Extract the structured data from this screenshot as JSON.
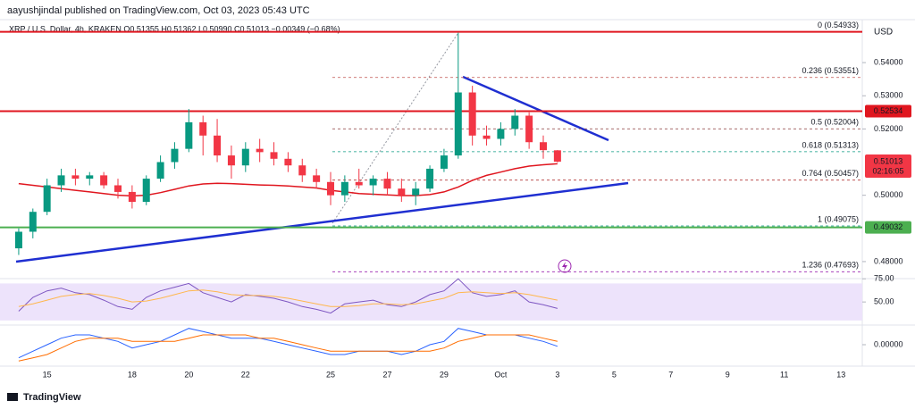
{
  "chart_data": {
    "type": "candlestick",
    "title": "aayushjindal published on TradingView.com, Oct 03, 2023 05:43 UTC",
    "subtitle": "XRP / U.S. Dollar, 4h, KRAKEN  O0.51355 H0.51362 L0.50990 C0.51013 −0.00349 (−0.68%)",
    "y_unit": "USD",
    "source": "TradingView",
    "up_color": "#089981",
    "down_color": "#f23645",
    "categories": [
      null,
      null,
      "15",
      null,
      null,
      null,
      null,
      null,
      "18",
      null,
      null,
      null,
      "20",
      null,
      null,
      null,
      "22",
      null,
      null,
      null,
      null,
      null,
      "25",
      null,
      null,
      null,
      "27",
      null,
      null,
      null,
      "29",
      null,
      null,
      null,
      "Oct",
      null,
      null,
      null,
      "3",
      null,
      null,
      null,
      "5",
      null,
      null,
      null,
      "7",
      null,
      null,
      null,
      "9",
      null,
      null,
      null,
      "11",
      null,
      null,
      null,
      "13",
      null
    ],
    "open": [
      0.484,
      0.489,
      0.495,
      0.503,
      0.506,
      0.505,
      0.506,
      0.503,
      0.501,
      0.498,
      0.505,
      0.51,
      0.514,
      0.522,
      0.518,
      0.512,
      0.509,
      0.514,
      0.513,
      0.511,
      0.509,
      0.506,
      0.504,
      0.5,
      0.504,
      0.503,
      0.505,
      0.502,
      0.5,
      0.502,
      0.508,
      0.512,
      0.531,
      0.518,
      0.517,
      0.52,
      0.524,
      0.516,
      0.51355,
      null,
      null,
      null,
      null,
      null,
      null,
      null,
      null,
      null,
      null,
      null,
      null,
      null,
      null,
      null,
      null,
      null,
      null,
      null,
      null,
      null
    ],
    "high": [
      0.49,
      0.496,
      0.505,
      0.508,
      0.508,
      0.507,
      0.507,
      0.505,
      0.503,
      0.506,
      0.512,
      0.516,
      0.526,
      0.524,
      0.523,
      0.515,
      0.516,
      0.517,
      0.516,
      0.513,
      0.511,
      0.508,
      0.507,
      0.506,
      0.508,
      0.506,
      0.507,
      0.505,
      0.504,
      0.509,
      0.514,
      0.549,
      0.533,
      0.521,
      0.522,
      0.526,
      0.525,
      0.518,
      0.51362,
      null,
      null,
      null,
      null,
      null,
      null,
      null,
      null,
      null,
      null,
      null,
      null,
      null,
      null,
      null,
      null,
      null,
      null,
      null,
      null,
      null
    ],
    "low": [
      0.482,
      0.487,
      0.494,
      0.501,
      0.503,
      0.503,
      0.502,
      0.499,
      0.496,
      0.497,
      0.504,
      0.508,
      0.513,
      0.512,
      0.51,
      0.505,
      0.507,
      0.51,
      0.509,
      0.507,
      0.504,
      0.502,
      0.497,
      0.498,
      0.502,
      0.5,
      0.5,
      0.498,
      0.497,
      0.501,
      0.507,
      0.511,
      0.515,
      0.515,
      0.515,
      0.518,
      0.514,
      0.511,
      0.5099,
      null,
      null,
      null,
      null,
      null,
      null,
      null,
      null,
      null,
      null,
      null,
      null,
      null,
      null,
      null,
      null,
      null,
      null,
      null,
      null,
      null
    ],
    "close": [
      0.489,
      0.495,
      0.503,
      0.506,
      0.505,
      0.506,
      0.503,
      0.501,
      0.498,
      0.505,
      0.51,
      0.514,
      0.522,
      0.518,
      0.512,
      0.509,
      0.514,
      0.513,
      0.511,
      0.509,
      0.506,
      0.504,
      0.5,
      0.504,
      0.503,
      0.505,
      0.502,
      0.5,
      0.502,
      0.508,
      0.512,
      0.531,
      0.518,
      0.517,
      0.52,
      0.524,
      0.516,
      0.5136,
      0.51013,
      null,
      null,
      null,
      null,
      null,
      null,
      null,
      null,
      null,
      null,
      null,
      null,
      null,
      null,
      null,
      null,
      null,
      null,
      null,
      null,
      null
    ],
    "ma": {
      "color": "#e0161f",
      "values": [
        0.5035,
        0.503,
        0.5025,
        0.502,
        0.5015,
        0.501,
        0.5005,
        0.5,
        0.4998,
        0.5,
        0.5008,
        0.5018,
        0.5028,
        0.5034,
        0.5036,
        0.5035,
        0.5033,
        0.5031,
        0.503,
        0.5028,
        0.5025,
        0.5022,
        0.5015,
        0.501,
        0.5005,
        0.5003,
        0.5001,
        0.4999,
        0.4999,
        0.5002,
        0.501,
        0.5025,
        0.5045,
        0.506,
        0.507,
        0.508,
        0.5088,
        0.5092,
        0.5095,
        null,
        null,
        null,
        null,
        null,
        null,
        null,
        null,
        null,
        null,
        null,
        null,
        null,
        null,
        null,
        null,
        null,
        null,
        null,
        null,
        null
      ]
    },
    "ylim": [
      0.4754,
      0.5508
    ],
    "yticks": [
      {
        "value": 0.54,
        "label": "0.54000"
      },
      {
        "value": 0.53,
        "label": "0.53000"
      },
      {
        "value": 0.52,
        "label": "0.52000"
      },
      {
        "value": 0.5,
        "label": "0.50000"
      },
      {
        "value": 0.48,
        "label": "0.48000"
      }
    ],
    "levels": [
      {
        "value": 0.5493,
        "color": "#e0161f"
      },
      {
        "value": 0.52534,
        "label": "0.52534",
        "color": "#e0161f"
      },
      {
        "value": 0.49032,
        "label": "0.49032",
        "color": "#4caf50"
      }
    ],
    "price_tag": {
      "value": 0.51013,
      "label": "0.51013",
      "countdown": "02:16:05",
      "color": "#f23645"
    },
    "fib_levels": [
      {
        "label": "0 (0.54933)",
        "value": 0.54933,
        "color": "#787b86"
      },
      {
        "label": "0.236 (0.53551)",
        "value": 0.53551,
        "color": "#c0504d"
      },
      {
        "label": "0.5 (0.52004)",
        "value": 0.52004,
        "color": "#8a3a3a"
      },
      {
        "label": "0.618 (0.51313)",
        "value": 0.51313,
        "color": "#089981"
      },
      {
        "label": "0.764 (0.50457)",
        "value": 0.50457,
        "color": "#b33a3a"
      },
      {
        "label": "1 (0.49075)",
        "value": 0.49075,
        "color": "#089981"
      },
      {
        "label": "1.236 (0.47693)",
        "value": 0.47693,
        "color": "#9c27b0"
      }
    ],
    "panes": [
      {
        "type": "line",
        "ylim": [
          27,
          81
        ],
        "yticks": [
          {
            "value": 75,
            "label": "75.00"
          },
          {
            "value": 50,
            "label": "50.00"
          }
        ],
        "band": [
          30,
          70
        ],
        "band_color": "#ede3fb",
        "series": [
          {
            "color": "#7e57c2",
            "values": [
              40,
              55,
              62,
              65,
              60,
              58,
              52,
              45,
              42,
              55,
              62,
              66,
              70,
              60,
              55,
              50,
              58,
              56,
              54,
              50,
              45,
              42,
              38,
              48,
              50,
              52,
              47,
              45,
              50,
              58,
              62,
              75,
              60,
              56,
              58,
              62,
              50,
              47,
              43,
              null,
              null,
              null,
              null,
              null,
              null,
              null,
              null,
              null,
              null,
              null,
              null,
              null,
              null,
              null,
              null,
              null,
              null,
              null,
              null,
              null
            ]
          },
          {
            "color": "#ffb74d",
            "values": [
              45,
              48,
              52,
              56,
              58,
              59,
              57,
              54,
              50,
              51,
              54,
              58,
              62,
              63,
              61,
              58,
              57,
              57,
              56,
              54,
              51,
              48,
              45,
              45,
              46,
              48,
              48,
              47,
              48,
              51,
              54,
              60,
              61,
              60,
              59,
              60,
              58,
              55,
              52,
              null,
              null,
              null,
              null,
              null,
              null,
              null,
              null,
              null,
              null,
              null,
              null,
              null,
              null,
              null,
              null,
              null,
              null,
              null,
              null,
              null
            ]
          }
        ]
      },
      {
        "type": "line",
        "ylim": [
          -0.006,
          0.006
        ],
        "yticks": [
          {
            "value": 0,
            "label": "0.00000"
          }
        ],
        "series": [
          {
            "color": "#2962ff",
            "values": [
              -0.004,
              -0.002,
              0,
              0.002,
              0.003,
              0.003,
              0.002,
              0.001,
              -0.001,
              0,
              0.001,
              0.003,
              0.005,
              0.004,
              0.003,
              0.002,
              0.002,
              0.002,
              0.001,
              0,
              -0.001,
              -0.002,
              -0.003,
              -0.003,
              -0.002,
              -0.002,
              -0.002,
              -0.003,
              -0.002,
              0,
              0.001,
              0.005,
              0.004,
              0.003,
              0.003,
              0.003,
              0.002,
              0.001,
              -0.0005,
              null,
              null,
              null,
              null,
              null,
              null,
              null,
              null,
              null,
              null,
              null,
              null,
              null,
              null,
              null,
              null,
              null,
              null,
              null,
              null,
              null
            ]
          },
          {
            "color": "#ff6d00",
            "values": [
              -0.005,
              -0.004,
              -0.003,
              -0.001,
              0.001,
              0.002,
              0.002,
              0.002,
              0.001,
              0.001,
              0.001,
              0.001,
              0.002,
              0.003,
              0.003,
              0.003,
              0.003,
              0.002,
              0.002,
              0.001,
              0,
              -0.001,
              -0.002,
              -0.002,
              -0.002,
              -0.002,
              -0.002,
              -0.002,
              -0.002,
              -0.002,
              -0.001,
              0.001,
              0.002,
              0.003,
              0.003,
              0.003,
              0.003,
              0.002,
              0.001,
              null,
              null,
              null,
              null,
              null,
              null,
              null,
              null,
              null,
              null,
              null,
              null,
              null,
              null,
              null,
              null,
              null,
              null,
              null,
              null,
              null
            ]
          }
        ]
      }
    ]
  }
}
